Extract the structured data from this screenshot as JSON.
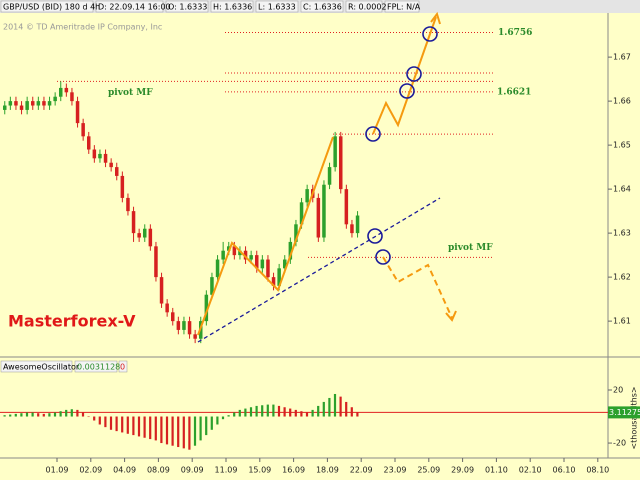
{
  "header": {
    "symbol": "GBP/USD (BID) 180 d 4h",
    "date": "D: 22.09.14 16:00",
    "open": "O: 1.6333",
    "high": "H: 1.6336",
    "low": "L: 1.6333",
    "close": "C: 1.6336",
    "range": "R: 0.0002",
    "fpl": "FPL: N/A"
  },
  "watermark": "2014 © TD Ameritrade IP Company, Inc",
  "brand": "Masterforex-V",
  "date_axis": [
    "01.09",
    "02.09",
    "04.09",
    "08.09",
    "09.09",
    "11.09",
    "15.09",
    "16.09",
    "18.09",
    "22.09",
    "23.09",
    "25.09",
    "29.09",
    "01.10",
    "02.10",
    "06.10",
    "08.10"
  ],
  "chart_data": [
    {
      "type": "candlestick",
      "open": [
        1.658,
        1.659,
        1.66,
        1.659,
        1.658,
        1.66,
        1.659,
        1.66,
        1.659,
        1.66,
        1.661,
        1.663,
        1.662,
        1.66,
        1.655,
        1.652,
        1.649,
        1.647,
        1.648,
        1.646,
        1.645,
        1.643,
        1.638,
        1.635,
        1.63,
        1.629,
        1.631,
        1.627,
        1.62,
        1.614,
        1.612,
        1.61,
        1.608,
        1.61,
        1.607,
        1.606,
        1.61,
        1.616,
        1.62,
        1.624,
        1.626,
        1.627,
        1.625,
        1.626,
        1.624,
        1.625,
        1.622,
        1.624,
        1.62,
        1.618,
        1.622,
        1.624,
        1.628,
        1.632,
        1.637,
        1.64,
        1.638,
        1.629,
        1.641,
        1.645,
        1.652,
        1.64,
        1.632,
        1.63
      ],
      "high": [
        1.66,
        1.661,
        1.661,
        1.66,
        1.661,
        1.661,
        1.661,
        1.661,
        1.661,
        1.662,
        1.6645,
        1.664,
        1.663,
        1.661,
        1.656,
        1.653,
        1.65,
        1.649,
        1.649,
        1.647,
        1.646,
        1.644,
        1.639,
        1.636,
        1.631,
        1.632,
        1.632,
        1.628,
        1.621,
        1.615,
        1.613,
        1.611,
        1.611,
        1.611,
        1.608,
        1.611,
        1.617,
        1.621,
        1.625,
        1.628,
        1.628,
        1.628,
        1.627,
        1.627,
        1.626,
        1.626,
        1.625,
        1.625,
        1.621,
        1.623,
        1.625,
        1.629,
        1.633,
        1.638,
        1.641,
        1.641,
        1.639,
        1.642,
        1.646,
        1.653,
        1.653,
        1.641,
        1.633,
        1.635
      ],
      "low": [
        1.657,
        1.658,
        1.658,
        1.657,
        1.657,
        1.658,
        1.658,
        1.658,
        1.658,
        1.659,
        1.66,
        1.661,
        1.659,
        1.654,
        1.651,
        1.648,
        1.646,
        1.646,
        1.645,
        1.644,
        1.642,
        1.637,
        1.634,
        1.628,
        1.628,
        1.628,
        1.626,
        1.619,
        1.613,
        1.611,
        1.609,
        1.607,
        1.607,
        1.606,
        1.605,
        1.605,
        1.609,
        1.615,
        1.619,
        1.623,
        1.625,
        1.624,
        1.624,
        1.623,
        1.623,
        1.621,
        1.621,
        1.619,
        1.617,
        1.617,
        1.621,
        1.623,
        1.627,
        1.631,
        1.636,
        1.637,
        1.628,
        1.628,
        1.64,
        1.644,
        1.639,
        1.631,
        1.629,
        1.629
      ],
      "close": [
        1.659,
        1.66,
        1.659,
        1.658,
        1.66,
        1.659,
        1.66,
        1.659,
        1.66,
        1.661,
        1.663,
        1.662,
        1.66,
        1.655,
        1.652,
        1.649,
        1.647,
        1.648,
        1.646,
        1.645,
        1.643,
        1.638,
        1.635,
        1.63,
        1.629,
        1.631,
        1.627,
        1.62,
        1.614,
        1.612,
        1.61,
        1.608,
        1.61,
        1.607,
        1.606,
        1.61,
        1.616,
        1.62,
        1.624,
        1.626,
        1.627,
        1.625,
        1.626,
        1.624,
        1.625,
        1.622,
        1.624,
        1.62,
        1.618,
        1.622,
        1.624,
        1.628,
        1.632,
        1.637,
        1.64,
        1.638,
        1.629,
        1.641,
        1.645,
        1.652,
        1.64,
        1.632,
        1.63,
        1.634
      ],
      "up_color": "#2ca02c",
      "down_color": "#d62020",
      "ylim": [
        1.6023,
        1.6798
      ],
      "yticks": [
        1.61,
        1.62,
        1.63,
        1.64,
        1.65,
        1.66,
        1.67
      ],
      "levels": [
        1.6756,
        1.6664,
        {
          "value": 1.6645,
          "label": "pivot MF"
        },
        1.6621,
        1.6525,
        {
          "value": 1.6245,
          "label": "pivot MF"
        }
      ]
    },
    {
      "type": "bar",
      "title": "AwesomeOscillator",
      "value_label": "0.0031128",
      "zero_label": "0",
      "values": [
        1,
        1.5,
        2,
        2.5,
        3,
        3,
        2.5,
        2,
        2.5,
        3,
        4,
        5,
        5.5,
        5,
        3,
        0,
        -3,
        -6,
        -8,
        -10,
        -11,
        -12,
        -13,
        -14,
        -15,
        -16,
        -17,
        -18,
        -20,
        -21,
        -22,
        -23,
        -24,
        -25,
        -22,
        -18,
        -14,
        -10,
        -6,
        -2,
        1,
        3,
        5,
        6,
        7,
        8,
        8.5,
        9,
        9,
        8,
        7,
        6,
        5,
        4,
        3,
        5,
        8,
        11,
        14,
        17,
        15,
        11,
        7,
        3
      ],
      "current": 3.11275,
      "up_color": "#2ca02c",
      "down_color": "#d62020",
      "ylim": [
        -29,
        31.3
      ],
      "yticks": [
        20,
        -20
      ],
      "unit": "<thousandths>"
    }
  ]
}
